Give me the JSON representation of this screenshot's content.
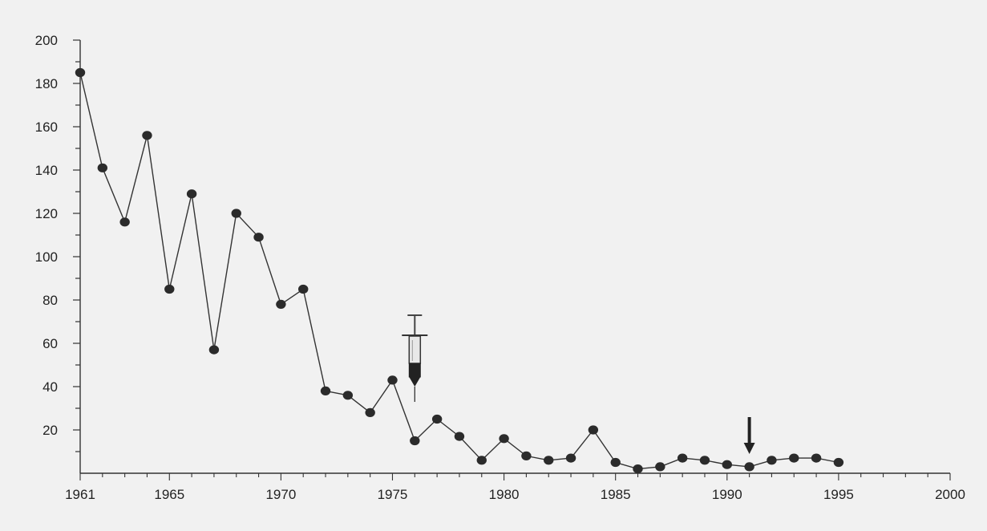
{
  "chart_data": {
    "type": "line",
    "title": "",
    "xlabel": "",
    "ylabel": "",
    "xlim": [
      1961,
      2000
    ],
    "ylim": [
      0,
      200
    ],
    "x_ticks": [
      "1961",
      "1965",
      "1970",
      "1975",
      "1980",
      "1985",
      "1990",
      "1995",
      "2000"
    ],
    "y_ticks": [
      "20",
      "40",
      "60",
      "80",
      "100",
      "120",
      "140",
      "160",
      "180",
      "200"
    ],
    "grid": false,
    "legend": "none",
    "series": [
      {
        "x": [
          1961,
          1962,
          1963,
          1964,
          1965,
          1966,
          1967,
          1968,
          1969,
          1970,
          1971,
          1972,
          1973,
          1974,
          1975,
          1976,
          1977,
          1978,
          1979,
          1980,
          1981,
          1982,
          1983,
          1984,
          1985,
          1986,
          1987,
          1988,
          1989,
          1990,
          1991,
          1992,
          1993,
          1994,
          1995
        ],
        "values": [
          185,
          141,
          116,
          156,
          85,
          129,
          57,
          120,
          109,
          78,
          85,
          38,
          36,
          28,
          43,
          15,
          25,
          17,
          6,
          16,
          8,
          6,
          7,
          20,
          5,
          2,
          3,
          7,
          6,
          4,
          3,
          6,
          7,
          7,
          5
        ]
      }
    ],
    "annotations": [
      {
        "icon": "syringe-icon",
        "x": 1976
      },
      {
        "icon": "down-arrow-icon",
        "x": 1991
      }
    ],
    "colors": {
      "line": "#333333",
      "marker": "#2b2b2b",
      "axis": "#333333",
      "background": "#f1f1f1"
    }
  }
}
